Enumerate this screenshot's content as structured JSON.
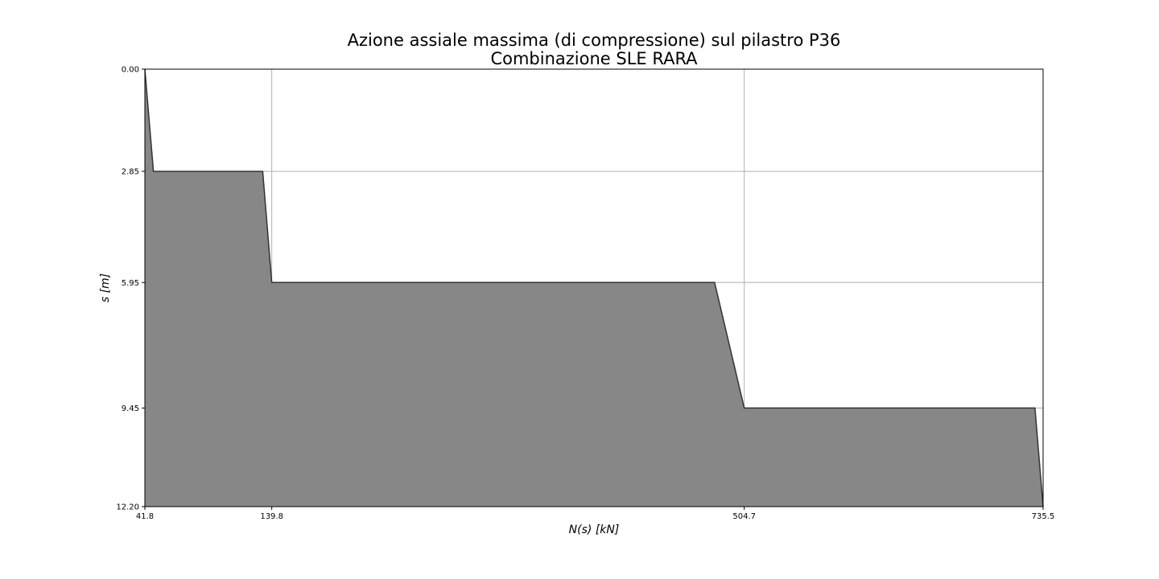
{
  "chart_data": {
    "type": "area",
    "title_line1": "Azione assiale massima (di compressione) sul pilastro P36",
    "title_line2": "Combinazione SLE RARA",
    "xlabel": "N(s) [kN]",
    "ylabel": "s [m]",
    "xlim": [
      41.8,
      735.5
    ],
    "ylim": [
      0.0,
      12.2
    ],
    "y_inverted": true,
    "grid": true,
    "x_ticks": [
      "41.8",
      "139.8",
      "504.7",
      "735.5"
    ],
    "y_ticks": [
      "0.00",
      "2.85",
      "5.95",
      "9.45",
      "12.20"
    ],
    "series": [
      {
        "x": [
          41.8,
          48.4,
          132.8,
          139.8,
          481.8,
          504.7,
          729.2,
          735.5
        ],
        "y": [
          0.0,
          2.85,
          2.85,
          5.95,
          5.95,
          9.45,
          9.45,
          12.2
        ]
      }
    ],
    "fill_color": "#878787",
    "line_color": "#333333",
    "grid_color": "#b0b0b0"
  }
}
